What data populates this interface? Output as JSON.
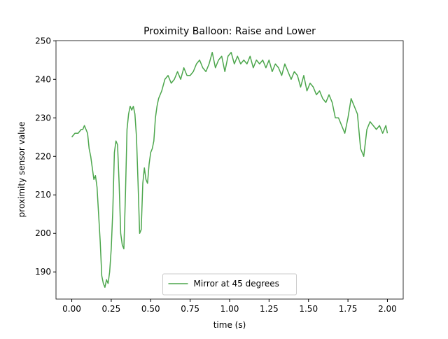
{
  "chart_data": {
    "type": "line",
    "title": "Proximity Balloon: Raise and Lower",
    "x_label": "time (s)",
    "y_label": "proximity sensor value",
    "xlim": [
      -0.1,
      2.1
    ],
    "ylim": [
      182.95,
      250.05
    ],
    "xticks": [
      {
        "value": 0,
        "label": "0.00"
      },
      {
        "value": 0.25,
        "label": "0.25"
      },
      {
        "value": 0.5,
        "label": "0.50"
      },
      {
        "value": 0.75,
        "label": "0.75"
      },
      {
        "value": 1,
        "label": "1.00"
      },
      {
        "value": 1.25,
        "label": "1.25"
      },
      {
        "value": 1.5,
        "label": "1.50"
      },
      {
        "value": 1.75,
        "label": "1.75"
      },
      {
        "value": 2,
        "label": "2.00"
      }
    ],
    "yticks": [
      190,
      200,
      210,
      220,
      230,
      240,
      250
    ],
    "legend": "lower center",
    "x": [
      0.0,
      0.02,
      0.04,
      0.06,
      0.07,
      0.08,
      0.09,
      0.1,
      0.11,
      0.12,
      0.13,
      0.14,
      0.15,
      0.16,
      0.17,
      0.18,
      0.19,
      0.2,
      0.21,
      0.22,
      0.23,
      0.24,
      0.25,
      0.26,
      0.27,
      0.28,
      0.29,
      0.3,
      0.31,
      0.32,
      0.33,
      0.34,
      0.35,
      0.36,
      0.37,
      0.38,
      0.39,
      0.4,
      0.41,
      0.42,
      0.43,
      0.44,
      0.45,
      0.46,
      0.47,
      0.48,
      0.49,
      0.5,
      0.51,
      0.52,
      0.53,
      0.54,
      0.55,
      0.57,
      0.59,
      0.61,
      0.63,
      0.65,
      0.67,
      0.69,
      0.71,
      0.73,
      0.75,
      0.77,
      0.79,
      0.81,
      0.83,
      0.85,
      0.87,
      0.89,
      0.91,
      0.93,
      0.95,
      0.97,
      0.99,
      1.01,
      1.03,
      1.05,
      1.07,
      1.09,
      1.11,
      1.13,
      1.15,
      1.17,
      1.19,
      1.21,
      1.23,
      1.25,
      1.27,
      1.29,
      1.31,
      1.33,
      1.35,
      1.37,
      1.39,
      1.41,
      1.43,
      1.45,
      1.47,
      1.49,
      1.51,
      1.53,
      1.55,
      1.57,
      1.59,
      1.61,
      1.63,
      1.65,
      1.67,
      1.69,
      1.71,
      1.73,
      1.75,
      1.77,
      1.79,
      1.81,
      1.83,
      1.85,
      1.87,
      1.89,
      1.91,
      1.93,
      1.95,
      1.97,
      1.99,
      2.0
    ],
    "series": [
      {
        "name": "Mirror at 45 degrees",
        "color": "#4ca64c",
        "values": [
          225,
          226,
          226,
          227,
          227,
          228,
          227,
          226,
          222,
          220,
          217,
          214,
          215,
          212,
          205,
          198,
          189,
          187,
          186,
          188,
          187,
          190,
          196,
          206,
          221,
          224,
          223,
          213,
          200,
          197,
          196,
          210,
          227,
          231,
          233,
          232,
          233,
          231,
          225,
          213,
          200,
          201,
          213,
          217,
          214,
          213,
          218,
          221,
          222,
          224,
          230,
          233,
          235,
          237,
          240,
          241,
          239,
          240,
          242,
          240,
          243,
          241,
          241,
          242,
          244,
          245,
          243,
          242,
          244,
          247,
          243,
          245,
          246,
          242,
          246,
          247,
          244,
          246,
          244,
          245,
          244,
          246,
          243,
          245,
          244,
          245,
          243,
          245,
          242,
          244,
          243,
          241,
          244,
          242,
          240,
          242,
          241,
          238,
          241,
          237,
          239,
          238,
          236,
          237,
          235,
          234,
          236,
          234,
          230,
          230,
          228,
          226,
          230,
          235,
          233,
          231,
          222,
          220,
          227,
          229,
          228,
          227,
          228,
          226,
          228,
          226
        ]
      }
    ]
  }
}
